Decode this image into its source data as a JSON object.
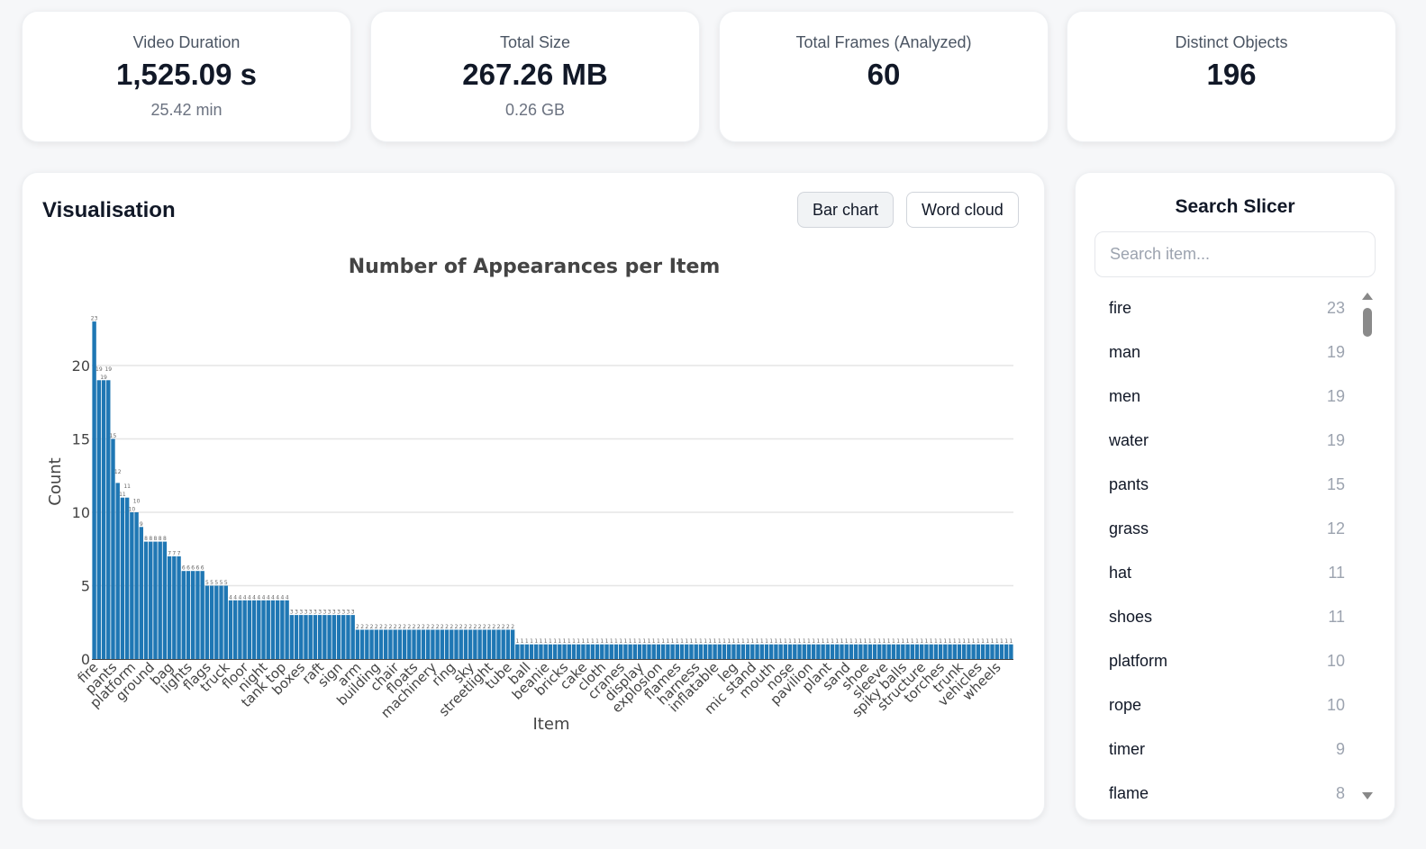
{
  "stats": [
    {
      "label": "Video Duration",
      "value": "1,525.09 s",
      "sub": "25.42 min"
    },
    {
      "label": "Total Size",
      "value": "267.26 MB",
      "sub": "0.26 GB"
    },
    {
      "label": "Total Frames (Analyzed)",
      "value": "60",
      "sub": ""
    },
    {
      "label": "Distinct Objects",
      "value": "196",
      "sub": ""
    }
  ],
  "visualisation": {
    "title": "Visualisation",
    "tabs": [
      {
        "label": "Bar chart",
        "active": true
      },
      {
        "label": "Word cloud",
        "active": false
      }
    ]
  },
  "chart_data": {
    "type": "bar",
    "title": "Number of Appearances per Item",
    "xlabel": "Item",
    "ylabel": "Count",
    "ylim": [
      0,
      23
    ],
    "yticks": [
      0,
      5,
      10,
      15,
      20
    ],
    "grid": true,
    "bar_color": "#1f77b4",
    "x_tick_labels": [
      "fire",
      "pants",
      "platform",
      "ground",
      "bag",
      "lights",
      "flags",
      "truck",
      "floor",
      "night",
      "tank top",
      "boxes",
      "raft",
      "sign",
      "arm",
      "building",
      "chair",
      "floats",
      "machinery",
      "ring",
      "sky",
      "streetlight",
      "tube",
      "ball",
      "beanie",
      "bricks",
      "cake",
      "cloth",
      "cranes",
      "display",
      "explosion",
      "flames",
      "harness",
      "inflatable",
      "leg",
      "mic stand",
      "mouth",
      "nose",
      "pavilion",
      "plant",
      "sand",
      "shoe",
      "sleeve",
      "spiky balls",
      "structure",
      "torches",
      "trunk",
      "vehicles",
      "wheels"
    ],
    "values": [
      23,
      19,
      19,
      19,
      15,
      12,
      11,
      11,
      10,
      10,
      9,
      8,
      8,
      8,
      8,
      8,
      7,
      7,
      7,
      6,
      6,
      6,
      6,
      6,
      5,
      5,
      5,
      5,
      5,
      4,
      4,
      4,
      4,
      4,
      4,
      4,
      4,
      4,
      4,
      4,
      4,
      4,
      3,
      3,
      3,
      3,
      3,
      3,
      3,
      3,
      3,
      3,
      3,
      3,
      3,
      3,
      2,
      2,
      2,
      2,
      2,
      2,
      2,
      2,
      2,
      2,
      2,
      2,
      2,
      2,
      2,
      2,
      2,
      2,
      2,
      2,
      2,
      2,
      2,
      2,
      2,
      2,
      2,
      2,
      2,
      2,
      2,
      2,
      2,
      2,
      1,
      1,
      1,
      1,
      1,
      1,
      1,
      1,
      1,
      1,
      1,
      1,
      1,
      1,
      1,
      1,
      1,
      1,
      1,
      1,
      1,
      1,
      1,
      1,
      1,
      1,
      1,
      1,
      1,
      1,
      1,
      1,
      1,
      1,
      1,
      1,
      1,
      1,
      1,
      1,
      1,
      1,
      1,
      1,
      1,
      1,
      1,
      1,
      1,
      1,
      1,
      1,
      1,
      1,
      1,
      1,
      1,
      1,
      1,
      1,
      1,
      1,
      1,
      1,
      1,
      1,
      1,
      1,
      1,
      1,
      1,
      1,
      1,
      1,
      1,
      1,
      1,
      1,
      1,
      1,
      1,
      1,
      1,
      1,
      1,
      1,
      1,
      1,
      1,
      1,
      1,
      1,
      1,
      1,
      1,
      1,
      1,
      1,
      1,
      1,
      1,
      1,
      1,
      1,
      1,
      1
    ]
  },
  "slicer": {
    "title": "Search Slicer",
    "placeholder": "Search item...",
    "items": [
      {
        "name": "fire",
        "count": "23"
      },
      {
        "name": "man",
        "count": "19"
      },
      {
        "name": "men",
        "count": "19"
      },
      {
        "name": "water",
        "count": "19"
      },
      {
        "name": "pants",
        "count": "15"
      },
      {
        "name": "grass",
        "count": "12"
      },
      {
        "name": "hat",
        "count": "11"
      },
      {
        "name": "shoes",
        "count": "11"
      },
      {
        "name": "platform",
        "count": "10"
      },
      {
        "name": "rope",
        "count": "10"
      },
      {
        "name": "timer",
        "count": "9"
      },
      {
        "name": "flame",
        "count": "8"
      }
    ]
  }
}
